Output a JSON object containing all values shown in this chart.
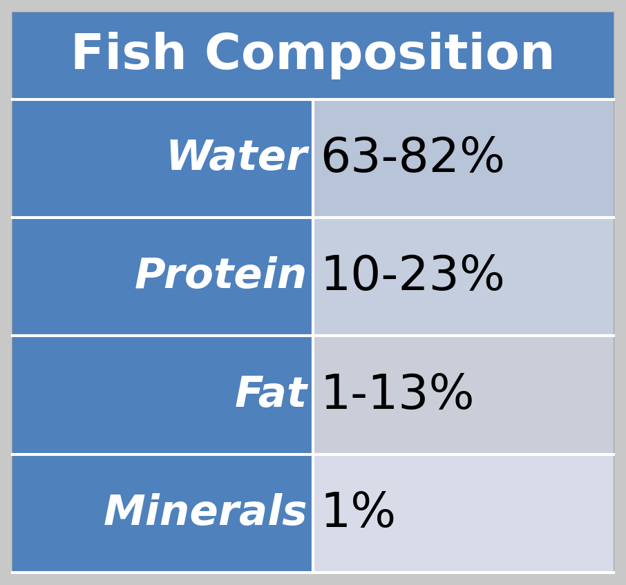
{
  "title": "Fish Composition",
  "title_bg_color": "#4F81BD",
  "title_text_color": "#FFFFFF",
  "left_bg_color": "#4F81BD",
  "left_text_color": "#FFFFFF",
  "right_bg_colors": [
    "#B8C4D8",
    "#C4CEDF",
    "#CACED9",
    "#D8DCE8"
  ],
  "right_text_color": "#000000",
  "border_color": "#FFFFFF",
  "outer_bg_color": "#C8C8C8",
  "rows": [
    {
      "label": "Water",
      "value": "63-82%"
    },
    {
      "label": "Protein",
      "value": "10-23%"
    },
    {
      "label": "Fat",
      "value": "1-13%"
    },
    {
      "label": "Minerals",
      "value": "1%"
    }
  ],
  "title_fontsize": 52,
  "label_fontsize": 44,
  "value_fontsize": 50,
  "fig_width": 9.06,
  "fig_height": 8.47,
  "dpi": 100
}
